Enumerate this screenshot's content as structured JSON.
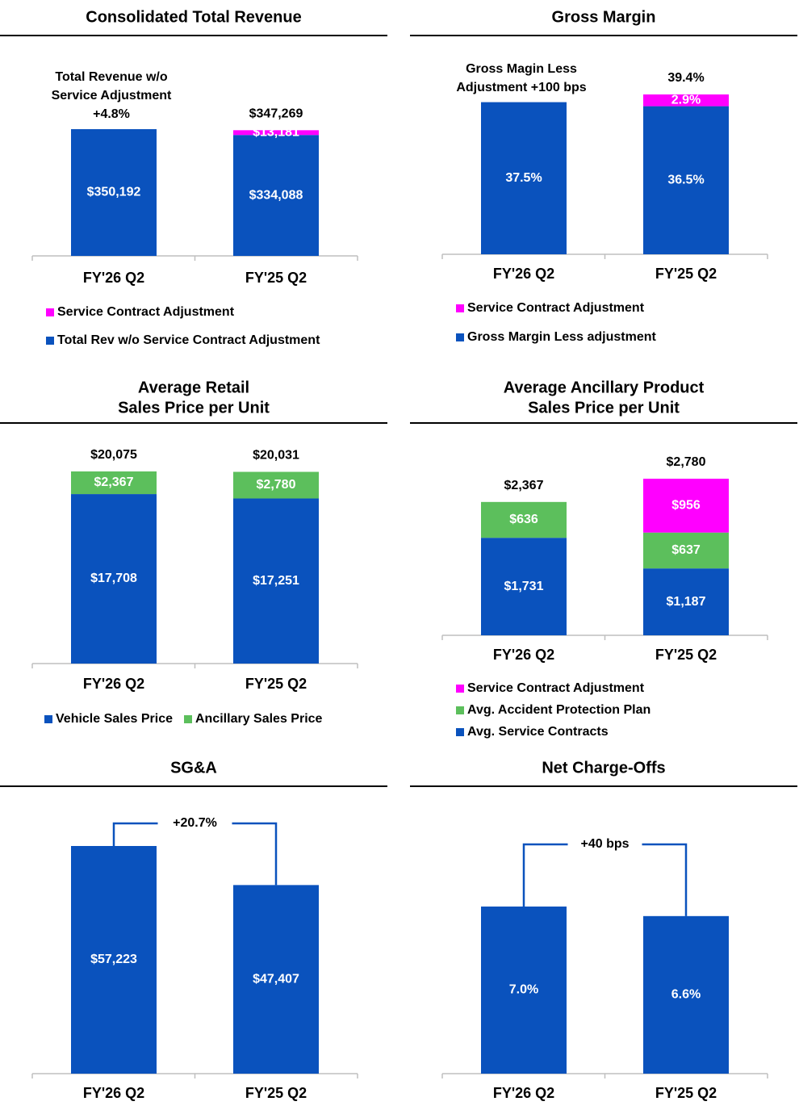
{
  "chart_data": [
    {
      "type": "bar",
      "stacked": true,
      "title": [
        "Consolidated Total Revenue"
      ],
      "categories": [
        "FY'26 Q2",
        "FY'25 Q2"
      ],
      "series": [
        {
          "name": "Total Rev w/o Service Contract Adjustment",
          "color": "#0a52bd",
          "values": [
            350192,
            334088
          ],
          "value_labels": [
            "$350,192",
            "$334,088"
          ]
        },
        {
          "name": "Service Contract Adjustment",
          "color": "#ff00ff",
          "values": [
            null,
            13181
          ],
          "value_labels": [
            null,
            "$13,181"
          ]
        }
      ],
      "total_labels": [
        null,
        "$347,269"
      ],
      "annotation": [
        "Total Revenue w/o",
        "Service Adjustment",
        "+4.8%"
      ],
      "legend": "column"
    },
    {
      "type": "bar",
      "stacked": true,
      "title": [
        "Gross Margin"
      ],
      "categories": [
        "FY'26 Q2",
        "FY'25 Q2"
      ],
      "series": [
        {
          "name": "Gross Margin Less adjustment",
          "color": "#0a52bd",
          "values": [
            37.5,
            36.5
          ],
          "value_labels": [
            "37.5%",
            "36.5%"
          ]
        },
        {
          "name": "Service Contract Adjustment",
          "color": "#ff00ff",
          "values": [
            null,
            2.9
          ],
          "value_labels": [
            null,
            "2.9%"
          ]
        }
      ],
      "total_labels": [
        null,
        "39.4%"
      ],
      "annotation": [
        "Gross Magin Less",
        "Adjustment +100 bps"
      ],
      "legend": "column"
    },
    {
      "type": "bar",
      "stacked": true,
      "title": [
        "Average Retail",
        "Sales Price per Unit"
      ],
      "categories": [
        "FY'26 Q2",
        "FY'25 Q2"
      ],
      "series": [
        {
          "name": "Vehicle Sales Price",
          "color": "#0a52bd",
          "values": [
            17708,
            17251
          ],
          "value_labels": [
            "$17,708",
            "$17,251"
          ]
        },
        {
          "name": "Ancillary Sales Price",
          "color": "#5cbf5c",
          "values": [
            2367,
            2780
          ],
          "value_labels": [
            "$2,367",
            "$2,780"
          ]
        }
      ],
      "total_labels": [
        "$20,075",
        "$20,031"
      ],
      "legend": "row"
    },
    {
      "type": "bar",
      "stacked": true,
      "title": [
        "Average Ancillary Product",
        "Sales Price per Unit"
      ],
      "categories": [
        "FY'26 Q2",
        "FY'25 Q2"
      ],
      "series": [
        {
          "name": "Avg. Service Contracts",
          "color": "#0a52bd",
          "values": [
            1731,
            1187
          ],
          "value_labels": [
            "$1,731",
            "$1,187"
          ]
        },
        {
          "name": "Avg. Accident Protection Plan",
          "color": "#5cbf5c",
          "values": [
            636,
            637
          ],
          "value_labels": [
            "$636",
            "$637"
          ]
        },
        {
          "name": "Service Contract Adjustment",
          "color": "#ff00ff",
          "values": [
            null,
            956
          ],
          "value_labels": [
            null,
            "$956"
          ]
        }
      ],
      "total_labels": [
        "$2,367",
        "$2,780"
      ],
      "legend": "column"
    },
    {
      "type": "bar",
      "title": [
        "SG&A"
      ],
      "categories": [
        "FY'26 Q2",
        "FY'25 Q2"
      ],
      "series": [
        {
          "color": "#0a52bd",
          "values": [
            57223,
            47407
          ],
          "value_labels": [
            "$57,223",
            "$47,407"
          ]
        }
      ],
      "change_label": "+20.7%"
    },
    {
      "type": "bar",
      "title": [
        "Net Charge-Offs"
      ],
      "categories": [
        "FY'26 Q2",
        "FY'25 Q2"
      ],
      "series": [
        {
          "color": "#0a52bd",
          "values": [
            7.0,
            6.6
          ],
          "value_labels": [
            "7.0%",
            "6.6%"
          ]
        }
      ],
      "change_label": "+40 bps"
    }
  ]
}
